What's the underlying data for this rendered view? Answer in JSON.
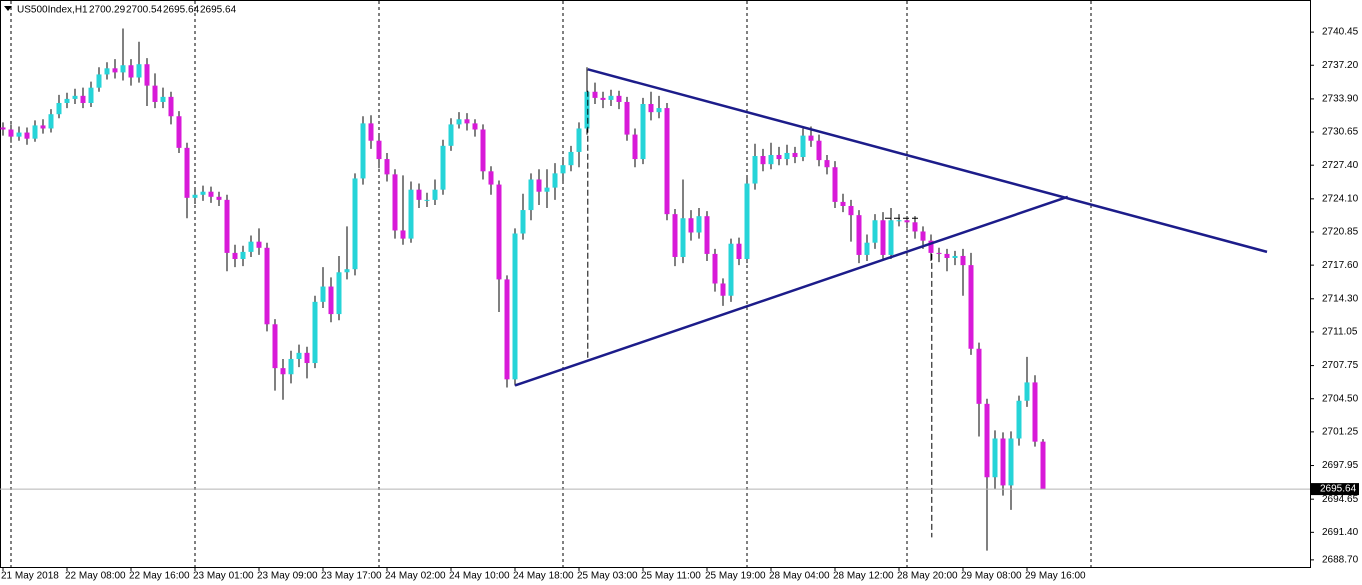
{
  "chart_data": {
    "type": "candlestick",
    "title": "US500Index,H1",
    "open": [
      2731.3,
      2731.1,
      2730.9,
      2730.2,
      2730.6,
      2730.0,
      2731.3,
      2731.0,
      2732.4,
      2733.5,
      2733.9,
      2734.2,
      2733.5,
      2735.0,
      2736.3,
      2736.9,
      2736.5,
      2737.2,
      2736.0,
      2737.3,
      2735.2,
      2733.6,
      2734.1,
      2732.2,
      2729.1,
      2724.2,
      2724.5,
      2724.8,
      2724.3,
      2724.0,
      2718.8,
      2718.2,
      2718.9,
      2719.9,
      2719.3,
      2711.8,
      2707.5,
      2706.9,
      2708.4,
      2709.0,
      2708.0,
      2714.0,
      2715.5,
      2712.8,
      2716.9,
      2717.2,
      2726.1,
      2731.5,
      2729.8,
      2728.0,
      2726.5,
      2721.0,
      2720.2,
      2725.0,
      2724.0,
      2724.0,
      2725.0,
      2729.3,
      2731.4,
      2731.9,
      2731.5,
      2730.9,
      2726.8,
      2725.5,
      2716.2,
      2706.4,
      2720.7,
      2723.0,
      2726.0,
      2724.8,
      2725.2,
      2726.6,
      2727.4,
      2728.7,
      2731.0,
      2734.6,
      2734.0,
      2733.8,
      2734.2,
      2733.6,
      2730.4,
      2728.0,
      2733.4,
      2732.6,
      2733.0,
      2722.6,
      2718.4,
      2722.2,
      2720.8,
      2722.4,
      2718.7,
      2715.8,
      2714.6,
      2719.7,
      2718.2,
      2725.6,
      2728.3,
      2727.5,
      2728.4,
      2728.0,
      2728.6,
      2728.2,
      2730.3,
      2729.8,
      2727.9,
      2727.2,
      2723.8,
      2723.4,
      2722.5,
      2718.6,
      2719.8,
      2722.0,
      2718.6,
      2722.0,
      2722.0,
      2721.8,
      2720.9,
      2720.0,
      2718.8,
      2718.7,
      2718.3,
      2718.5,
      2717.6,
      2709.4,
      2704.0,
      2696.8,
      2700.6,
      2696.0,
      2700.6,
      2704.3,
      2706.1,
      2700.29
    ],
    "high": [
      2731.8,
      2731.6,
      2731.4,
      2731.2,
      2731.1,
      2731.8,
      2731.9,
      2732.9,
      2734.3,
      2734.5,
      2734.9,
      2735.0,
      2735.6,
      2737.0,
      2737.5,
      2737.8,
      2740.8,
      2737.8,
      2739.5,
      2737.9,
      2736.4,
      2735.0,
      2734.6,
      2732.7,
      2729.6,
      2725.2,
      2725.4,
      2725.3,
      2724.8,
      2724.5,
      2719.6,
      2719.5,
      2720.5,
      2721.2,
      2719.8,
      2712.3,
      2708.4,
      2709.2,
      2709.8,
      2709.6,
      2714.6,
      2717.4,
      2716.4,
      2718.5,
      2721.4,
      2726.6,
      2732.2,
      2732.3,
      2730.4,
      2728.6,
      2727.0,
      2726.4,
      2725.8,
      2725.6,
      2724.7,
      2726.0,
      2729.9,
      2732.0,
      2732.6,
      2732.5,
      2731.9,
      2731.4,
      2727.3,
      2725.9,
      2716.6,
      2721.2,
      2724.6,
      2726.6,
      2727.0,
      2727.0,
      2727.6,
      2728.0,
      2729.3,
      2731.6,
      2737.0,
      2735.5,
      2734.6,
      2734.8,
      2734.7,
      2734.1,
      2731.0,
      2734.0,
      2734.6,
      2734.2,
      2733.5,
      2723.1,
      2726.0,
      2723.0,
      2723.2,
      2722.9,
      2719.2,
      2716.3,
      2720.2,
      2720.3,
      2726.2,
      2729.5,
      2729.0,
      2729.6,
      2729.2,
      2729.4,
      2729.2,
      2731.0,
      2731.2,
      2730.4,
      2728.4,
      2727.8,
      2724.6,
      2724.0,
      2723.0,
      2720.6,
      2722.6,
      2722.8,
      2723.2,
      2722.6,
      2722.4,
      2722.4,
      2721.4,
      2720.6,
      2719.3,
      2719.2,
      2719.0,
      2719.2,
      2718.8,
      2710.0,
      2704.5,
      2701.4,
      2701.2,
      2701.3,
      2704.8,
      2708.6,
      2706.8,
      2700.54
    ],
    "low": [
      2730.5,
      2730.3,
      2729.6,
      2729.8,
      2729.4,
      2729.7,
      2730.5,
      2730.6,
      2732.0,
      2733.0,
      2733.4,
      2733.0,
      2733.1,
      2734.6,
      2735.8,
      2735.9,
      2735.7,
      2735.2,
      2735.5,
      2733.2,
      2733.0,
      2733.0,
      2731.4,
      2728.6,
      2722.2,
      2723.6,
      2723.9,
      2723.7,
      2723.4,
      2717.0,
      2717.4,
      2717.5,
      2718.4,
      2718.6,
      2711.1,
      2705.3,
      2704.4,
      2706.0,
      2707.6,
      2706.5,
      2707.5,
      2713.4,
      2712.0,
      2712.2,
      2716.2,
      2716.6,
      2725.5,
      2729.0,
      2727.1,
      2725.8,
      2720.2,
      2719.6,
      2719.8,
      2723.2,
      2723.3,
      2723.5,
      2724.5,
      2728.8,
      2731.0,
      2730.8,
      2730.2,
      2726.0,
      2724.5,
      2713.0,
      2705.6,
      2705.8,
      2720.1,
      2722.0,
      2723.5,
      2723.2,
      2724.0,
      2725.6,
      2726.8,
      2727.2,
      2730.4,
      2733.4,
      2733.0,
      2733.2,
      2732.9,
      2729.8,
      2727.2,
      2727.5,
      2731.8,
      2732.0,
      2722.0,
      2717.5,
      2717.8,
      2720.0,
      2720.2,
      2718.0,
      2715.0,
      2713.6,
      2714.0,
      2717.6,
      2717.8,
      2725.0,
      2726.8,
      2727.0,
      2727.4,
      2727.4,
      2727.6,
      2727.8,
      2729.2,
      2727.3,
      2726.5,
      2723.2,
      2722.8,
      2719.9,
      2717.8,
      2718.0,
      2719.2,
      2718.0,
      2718.2,
      2721.4,
      2721.2,
      2720.2,
      2719.2,
      2718.0,
      2717.9,
      2717.0,
      2717.6,
      2714.6,
      2708.8,
      2700.8,
      2689.6,
      2695.6,
      2695.0,
      2693.6,
      2699.9,
      2703.7,
      2699.8,
      2695.64
    ],
    "close": [
      2731.1,
      2730.9,
      2730.2,
      2730.6,
      2730.0,
      2731.3,
      2731.0,
      2732.4,
      2733.5,
      2733.9,
      2734.2,
      2733.5,
      2735.0,
      2736.3,
      2736.9,
      2736.5,
      2737.2,
      2736.0,
      2737.3,
      2735.2,
      2733.6,
      2734.1,
      2732.2,
      2729.1,
      2724.2,
      2724.5,
      2724.8,
      2724.3,
      2724.0,
      2718.8,
      2718.2,
      2718.9,
      2719.9,
      2719.3,
      2711.8,
      2707.5,
      2706.9,
      2708.4,
      2709.0,
      2708.0,
      2714.0,
      2715.5,
      2712.8,
      2716.9,
      2717.2,
      2726.1,
      2731.5,
      2729.8,
      2728.0,
      2726.5,
      2721.0,
      2720.2,
      2725.0,
      2724.0,
      2724.0,
      2725.0,
      2729.3,
      2731.4,
      2731.9,
      2731.5,
      2730.9,
      2726.8,
      2725.5,
      2716.2,
      2706.4,
      2720.7,
      2723.0,
      2726.0,
      2724.8,
      2725.2,
      2726.6,
      2727.4,
      2728.7,
      2731.0,
      2734.6,
      2734.0,
      2733.8,
      2734.2,
      2733.6,
      2730.4,
      2728.0,
      2733.4,
      2732.6,
      2733.0,
      2722.6,
      2718.4,
      2722.2,
      2720.8,
      2722.4,
      2718.7,
      2715.8,
      2714.6,
      2719.7,
      2718.2,
      2725.6,
      2728.3,
      2727.5,
      2728.4,
      2728.0,
      2728.6,
      2728.2,
      2730.3,
      2729.8,
      2727.9,
      2727.2,
      2723.8,
      2723.4,
      2722.5,
      2718.6,
      2719.8,
      2722.0,
      2718.6,
      2722.0,
      2722.0,
      2721.8,
      2720.9,
      2720.0,
      2718.8,
      2718.7,
      2718.3,
      2718.5,
      2717.6,
      2709.4,
      2704.0,
      2696.8,
      2700.6,
      2696.0,
      2700.6,
      2704.3,
      2706.1,
      2700.29,
      2695.64
    ],
    "up_color": "#26d4d8",
    "down_color": "#d81ad8",
    "wick_color": "#000000",
    "xlim": [
      0.625,
      164.375
    ],
    "ylim": [
      2688.0,
      2743.5
    ],
    "xticks": [
      {
        "value": 1,
        "label": "21 May 2018"
      },
      {
        "value": 9,
        "label": "22 May 08:00"
      },
      {
        "value": 17,
        "label": "22 May 16:00"
      },
      {
        "value": 25,
        "label": "23 May 01:00"
      },
      {
        "value": 33,
        "label": "23 May 09:00"
      },
      {
        "value": 41,
        "label": "23 May 17:00"
      },
      {
        "value": 49,
        "label": "24 May 02:00"
      },
      {
        "value": 57,
        "label": "24 May 10:00"
      },
      {
        "value": 65,
        "label": "24 May 18:00"
      },
      {
        "value": 73,
        "label": "25 May 03:00"
      },
      {
        "value": 81,
        "label": "25 May 11:00"
      },
      {
        "value": 89,
        "label": "25 May 19:00"
      },
      {
        "value": 97,
        "label": "28 May 04:00"
      },
      {
        "value": 105,
        "label": "28 May 12:00"
      },
      {
        "value": 113,
        "label": "28 May 20:00"
      },
      {
        "value": 121,
        "label": "29 May 08:00"
      },
      {
        "value": 129,
        "label": "29 May 16:00"
      }
    ],
    "yticks": [
      2740.45,
      {
        "value": 2737.2,
        "label": "2737.20"
      },
      {
        "value": 2733.9,
        "label": "2733.90"
      },
      2730.65,
      {
        "value": 2727.4,
        "label": "2727.40"
      },
      {
        "value": 2724.1,
        "label": "2724.10"
      },
      2720.85,
      {
        "value": 2717.6,
        "label": "2717.60"
      },
      {
        "value": 2714.3,
        "label": "2714.30"
      },
      2711.05,
      2707.75,
      {
        "value": 2704.5,
        "label": "2704.50"
      },
      2701.25,
      2697.95,
      2694.65,
      {
        "value": 2691.4,
        "label": "2691.40"
      },
      {
        "value": 2688.7,
        "label": "2688.70"
      }
    ],
    "trendline_color": "#1c1c8a",
    "trendlines": [
      {
        "x": [
          74.1,
          159
        ],
        "y": [
          2736.8,
          2718.9
        ]
      },
      {
        "x": [
          65,
          134.1
        ],
        "y": [
          2705.8,
          2724.3
        ]
      }
    ],
    "dashed_lines": [
      {
        "x": [
          74.1,
          74.1
        ],
        "y": [
          2734.7,
          2708.4
        ]
      },
      {
        "x": [
          117.1,
          117.1
        ],
        "y": [
          2718.7,
          2690.9
        ]
      },
      {
        "x": [
          111.25,
          115.6
        ],
        "y": [
          2722.2,
          2722.2
        ]
      }
    ]
  }
}
